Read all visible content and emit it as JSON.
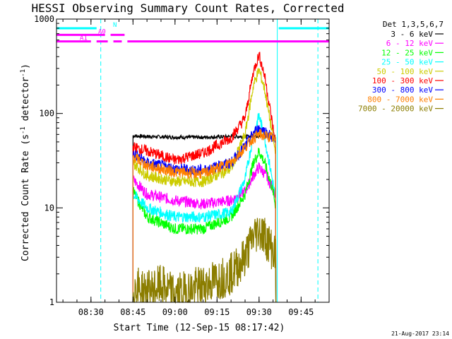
{
  "chart_data": {
    "type": "line",
    "title": "HESSI Observing Summary Count Rates, Corrected",
    "xlabel": "Start Time (12-Sep-15 08:17:42)",
    "ylabel": "Corrected Count Rate (s",
    "ylabel_sup": "-1",
    "ylabel_rest": " detector",
    "ylabel_sup2": "-1",
    "ylabel_close": ")",
    "y_scale": "log",
    "xlim": [
      "08:17:42",
      "09:55:00"
    ],
    "ylim": [
      1,
      1000
    ],
    "x_ticks": [
      "08:30",
      "08:45",
      "09:00",
      "09:15",
      "09:30",
      "09:45"
    ],
    "y_ticks": [
      "1",
      "10",
      "100",
      "1000"
    ],
    "grid": false,
    "legend_position": "right",
    "legend_title": "Det 1,3,5,6,7",
    "timestamp": "21-Aug-2017 23:14",
    "series": [
      {
        "name": "3 - 6 keV",
        "color": "#000000",
        "x": [
          "08:45",
          "08:50",
          "09:00",
          "09:10",
          "09:20",
          "09:25",
          "09:30",
          "09:35",
          "09:36"
        ],
        "values": [
          58,
          57,
          56,
          56,
          57,
          57,
          58,
          57,
          56
        ]
      },
      {
        "name": "6 - 12 keV",
        "color": "#ff00ff",
        "x": [
          "08:45",
          "08:50",
          "09:00",
          "09:10",
          "09:20",
          "09:25",
          "09:28",
          "09:30",
          "09:32",
          "09:35",
          "09:36"
        ],
        "values": [
          20,
          14,
          12,
          11,
          12,
          15,
          22,
          27,
          23,
          16,
          14
        ]
      },
      {
        "name": "12 - 25 keV",
        "color": "#00ff00",
        "x": [
          "08:45",
          "08:50",
          "09:00",
          "09:10",
          "09:20",
          "09:25",
          "09:28",
          "09:30",
          "09:32",
          "09:35",
          "09:36"
        ],
        "values": [
          15,
          8,
          6,
          6,
          8,
          14,
          30,
          40,
          30,
          15,
          10
        ]
      },
      {
        "name": "25 - 50 keV",
        "color": "#00ffff",
        "x": [
          "08:45",
          "08:50",
          "09:00",
          "09:10",
          "09:20",
          "09:25",
          "09:28",
          "09:30",
          "09:32",
          "09:35",
          "09:36"
        ],
        "values": [
          14,
          10,
          8,
          8,
          9,
          20,
          60,
          95,
          55,
          18,
          12
        ]
      },
      {
        "name": "50 - 100 keV",
        "color": "#cccc00",
        "x": [
          "08:45",
          "08:50",
          "09:00",
          "09:10",
          "09:20",
          "09:25",
          "09:28",
          "09:30",
          "09:32",
          "09:35",
          "09:36"
        ],
        "values": [
          30,
          22,
          19,
          19,
          26,
          60,
          200,
          290,
          180,
          55,
          35
        ]
      },
      {
        "name": "100 - 300 keV",
        "color": "#ff0000",
        "x": [
          "08:45",
          "08:50",
          "09:00",
          "09:10",
          "09:20",
          "09:25",
          "09:28",
          "09:30",
          "09:32",
          "09:35",
          "09:36"
        ],
        "values": [
          44,
          40,
          32,
          38,
          55,
          90,
          280,
          420,
          250,
          70,
          45
        ]
      },
      {
        "name": "300 - 800 keV",
        "color": "#0000ff",
        "x": [
          "08:45",
          "08:50",
          "09:00",
          "09:10",
          "09:20",
          "09:25",
          "09:28",
          "09:30",
          "09:32",
          "09:35",
          "09:36"
        ],
        "values": [
          38,
          30,
          26,
          25,
          30,
          45,
          62,
          70,
          65,
          55,
          45
        ]
      },
      {
        "name": "800 - 7000 keV",
        "color": "#ff7f00",
        "x": [
          "08:45",
          "08:50",
          "09:00",
          "09:10",
          "09:20",
          "09:25",
          "09:28",
          "09:30",
          "09:32",
          "09:35",
          "09:36"
        ],
        "values": [
          35,
          28,
          24,
          23,
          30,
          44,
          55,
          60,
          58,
          55,
          48
        ]
      },
      {
        "name": "7000 - 20000 keV",
        "color": "#8b7d00",
        "x": [
          "08:45",
          "08:50",
          "08:55",
          "09:00",
          "09:10",
          "09:20",
          "09:25",
          "09:28",
          "09:30",
          "09:32",
          "09:35",
          "09:36"
        ],
        "values": [
          1.5,
          1.3,
          1.5,
          1.2,
          1.5,
          2,
          3,
          5,
          6,
          5,
          3.5,
          3
        ]
      }
    ],
    "annotations": [
      {
        "label": "N",
        "color": "#00ffff",
        "segments": [
          [
            "08:17:42",
            "08:32:00"
          ],
          [
            "09:37:00",
            "09:55:00"
          ]
        ],
        "level": 800
      },
      {
        "label": "A0",
        "color": "#ff00ff",
        "segments": [
          [
            "08:17:42",
            "08:35:00"
          ],
          [
            "08:37:00",
            "08:42:00"
          ]
        ],
        "level": 680
      },
      {
        "label": "A1",
        "color": "#ff00ff",
        "segments": [
          [
            "08:17:42",
            "08:30:00"
          ],
          [
            "08:32:00",
            "08:36:00"
          ],
          [
            "08:38:00",
            "08:41:00"
          ],
          [
            "08:43:00",
            "09:55:00"
          ]
        ],
        "level": 580
      }
    ],
    "vertical_markers": [
      {
        "x": "08:33:30",
        "color": "#00ffff",
        "style": "dashed"
      },
      {
        "x": "09:36:30",
        "color": "#00ffff",
        "style": "solid"
      },
      {
        "x": "09:51:00",
        "color": "#00ffff",
        "style": "dashed"
      }
    ]
  }
}
